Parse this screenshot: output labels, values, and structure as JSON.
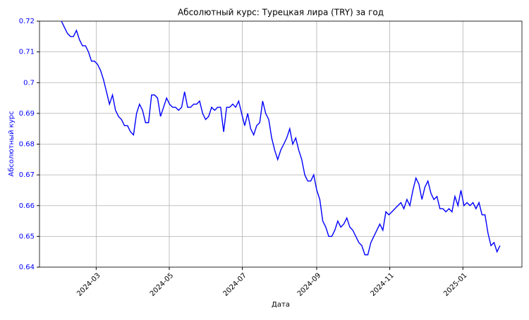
{
  "chart_data": {
    "type": "line",
    "title": "Абсолютный курс: Турецкая лира (TRY) за год",
    "xlabel": "Дата",
    "ylabel": "Абсолютный курс",
    "series": [
      {
        "color": "#0000ff",
        "values": [
          0.72,
          0.718,
          0.716,
          0.715,
          0.715,
          0.717,
          0.714,
          0.712,
          0.712,
          0.71,
          0.707,
          0.707,
          0.706,
          0.704,
          0.701,
          0.697,
          0.693,
          0.696,
          0.691,
          0.689,
          0.688,
          0.686,
          0.686,
          0.684,
          0.683,
          0.69,
          0.693,
          0.691,
          0.687,
          0.687,
          0.696,
          0.696,
          0.695,
          0.689,
          0.692,
          0.695,
          0.693,
          0.692,
          0.692,
          0.691,
          0.692,
          0.697,
          0.692,
          0.692,
          0.693,
          0.693,
          0.694,
          0.69,
          0.688,
          0.689,
          0.692,
          0.691,
          0.692,
          0.692,
          0.684,
          0.692,
          0.692,
          0.693,
          0.692,
          0.694,
          0.69,
          0.686,
          0.69,
          0.685,
          0.683,
          0.686,
          0.687,
          0.694,
          0.69,
          0.688,
          0.682,
          0.678,
          0.675,
          0.678,
          0.68,
          0.682,
          0.685,
          0.68,
          0.682,
          0.678,
          0.675,
          0.67,
          0.668,
          0.668,
          0.67,
          0.665,
          0.662,
          0.655,
          0.653,
          0.65,
          0.65,
          0.652,
          0.655,
          0.653,
          0.654,
          0.656,
          0.653,
          0.652,
          0.65,
          0.648,
          0.647,
          0.644,
          0.644,
          0.648,
          0.65,
          0.652,
          0.654,
          0.652,
          0.658,
          0.657,
          0.658,
          0.659,
          0.66,
          0.661,
          0.659,
          0.662,
          0.66,
          0.665,
          0.669,
          0.667,
          0.662,
          0.666,
          0.668,
          0.664,
          0.662,
          0.663,
          0.659,
          0.659,
          0.658,
          0.659,
          0.658,
          0.663,
          0.66,
          0.665,
          0.66,
          0.661,
          0.66,
          0.661,
          0.659,
          0.661,
          0.657,
          0.657,
          0.651,
          0.647,
          0.648,
          0.645,
          0.647
        ]
      }
    ],
    "xlim": [
      "2024-02",
      "2025-02"
    ],
    "xticks": [
      "2024-03",
      "2024-05",
      "2024-07",
      "2024-09",
      "2024-11",
      "2025-01"
    ],
    "ylim": [
      0.64,
      0.72
    ],
    "yticks": [
      0.64,
      0.65,
      0.66,
      0.67,
      0.68,
      0.69,
      0.7,
      0.71,
      0.72
    ],
    "grid": true
  }
}
